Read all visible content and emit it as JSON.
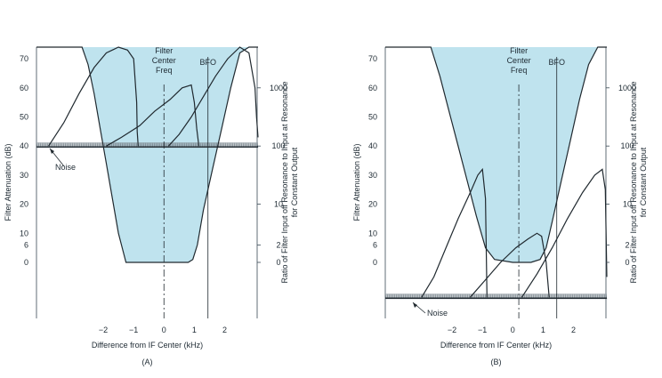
{
  "colors": {
    "fill": "#bfe3ee",
    "ink": "#20292f",
    "noise": "#8f9aa3"
  },
  "panels": [
    {
      "caption": "(A)",
      "filter_center_label": [
        "Filter",
        "Center",
        "Freq"
      ],
      "bfo_label": "BFO",
      "noise_label": "Noise",
      "ylabel": "Filter Attenuation (dB)",
      "y2label_line1": "Ratio of Filter Input off Resonance to Input at Resonance",
      "y2label_line2": "for Constant Output",
      "xlabel": "Difference from IF Center (kHz)",
      "left_ticks": [
        "70",
        "60",
        "50",
        "40",
        "30",
        "20",
        "10",
        "6",
        "0"
      ],
      "right_ticks": [
        "1000",
        "100",
        "10",
        "2",
        "0"
      ],
      "x_ticks": [
        "−2",
        "−1",
        "0",
        "1",
        "2"
      ]
    },
    {
      "caption": "(B)",
      "filter_center_label": [
        "Filter",
        "Center",
        "Freq"
      ],
      "bfo_label": "BFO",
      "noise_label": "Noise",
      "ylabel": "Filter Attenuation (dB)",
      "y2label_line1": "Ratio of Filter Input off Resonance to Input at Resonance",
      "y2label_line2": "for Constant Output",
      "xlabel": "Difference from IF Center (kHz)",
      "left_ticks": [
        "70",
        "60",
        "50",
        "40",
        "30",
        "20",
        "10",
        "6",
        "0"
      ],
      "right_ticks": [
        "1000",
        "100",
        "10",
        "2",
        "0"
      ],
      "x_ticks": [
        "−2",
        "−1",
        "0",
        "1",
        "2"
      ]
    }
  ],
  "chart_data": [
    {
      "type": "line",
      "title": "",
      "caption": "(A)",
      "xlabel": "Difference from IF Center (kHz)",
      "ylabel": "Filter Attenuation (dB)",
      "xlim": [
        -4.2,
        3.1
      ],
      "ylim": [
        -20,
        74
      ],
      "filter_center_khz": 0,
      "bfo_khz": 1.45,
      "noise_level_db": 40,
      "series": [
        {
          "name": "",
          "x": [
            -4.2,
            -2.7,
            -2.5,
            -2.3,
            -2.1,
            -1.9,
            -1.7,
            -1.5,
            -1.3,
            -1.25,
            -1.1,
            -0.9,
            -0.6,
            0,
            0.5,
            0.8,
            0.95,
            1.1,
            1.3,
            1.6,
            1.9,
            2.2,
            2.5,
            2.8,
            3.1
          ],
          "y": [
            74,
            74,
            68,
            58,
            46,
            34,
            22,
            10,
            2,
            0,
            0,
            0,
            0,
            0,
            0,
            0,
            1,
            6,
            18,
            32,
            46,
            60,
            72,
            74,
            74
          ]
        },
        {
          "name": "",
          "x": [
            -3.8,
            -3.3,
            -2.8,
            -2.3,
            -1.9,
            -1.5,
            -1.2,
            -1.0,
            -0.9,
            -0.88,
            -0.85
          ],
          "y": [
            40,
            48,
            58,
            67,
            72,
            74,
            73,
            70,
            55,
            45,
            40
          ]
        },
        {
          "name": "",
          "x": [
            -1.9,
            -1.4,
            -0.8,
            -0.3,
            0.2,
            0.6,
            0.9,
            1.0,
            1.08,
            1.15
          ],
          "y": [
            40,
            43,
            47,
            52,
            56,
            60,
            61,
            55,
            46,
            40
          ]
        },
        {
          "name": "",
          "x": [
            0.15,
            0.5,
            0.9,
            1.3,
            1.7,
            2.1,
            2.5,
            2.8,
            3.0,
            3.05,
            3.1
          ],
          "y": [
            40,
            44,
            50,
            57,
            64,
            70,
            74,
            72,
            60,
            50,
            43
          ]
        }
      ]
    },
    {
      "type": "line",
      "title": "",
      "caption": "(B)",
      "xlabel": "Difference from IF Center (kHz)",
      "ylabel": "Filter Attenuation (dB)",
      "xlim": [
        -4.2,
        3.1
      ],
      "ylim": [
        -20,
        74
      ],
      "filter_center_khz": 0.2,
      "bfo_khz": 1.45,
      "noise_level_db": -12,
      "series": [
        {
          "name": "",
          "x": [
            -4.2,
            -2.7,
            -2.4,
            -2.1,
            -1.8,
            -1.5,
            -1.2,
            -0.9,
            -0.6,
            0,
            0.6,
            0.9,
            1.1,
            1.3,
            1.6,
            1.9,
            2.2,
            2.5,
            2.8,
            3.1
          ],
          "y": [
            74,
            74,
            64,
            52,
            40,
            28,
            16,
            5,
            1,
            0,
            0,
            1,
            5,
            14,
            28,
            42,
            56,
            68,
            74,
            74
          ]
        },
        {
          "name": "",
          "x": [
            -3.0,
            -2.6,
            -2.2,
            -1.8,
            -1.4,
            -1.15,
            -1.0,
            -0.9,
            -0.85
          ],
          "y": [
            -12,
            -5,
            5,
            15,
            24,
            30,
            32,
            22,
            -12
          ]
        },
        {
          "name": "",
          "x": [
            -1.4,
            -0.9,
            -0.4,
            0.1,
            0.5,
            0.8,
            0.95,
            1.1,
            1.2
          ],
          "y": [
            -12,
            -6,
            0,
            5,
            8,
            10,
            9,
            0,
            -12
          ]
        },
        {
          "name": "",
          "x": [
            0.3,
            0.8,
            1.3,
            1.8,
            2.3,
            2.7,
            2.95,
            3.05,
            3.1
          ],
          "y": [
            -12,
            -4,
            5,
            15,
            24,
            30,
            32,
            25,
            -5
          ]
        }
      ]
    }
  ]
}
